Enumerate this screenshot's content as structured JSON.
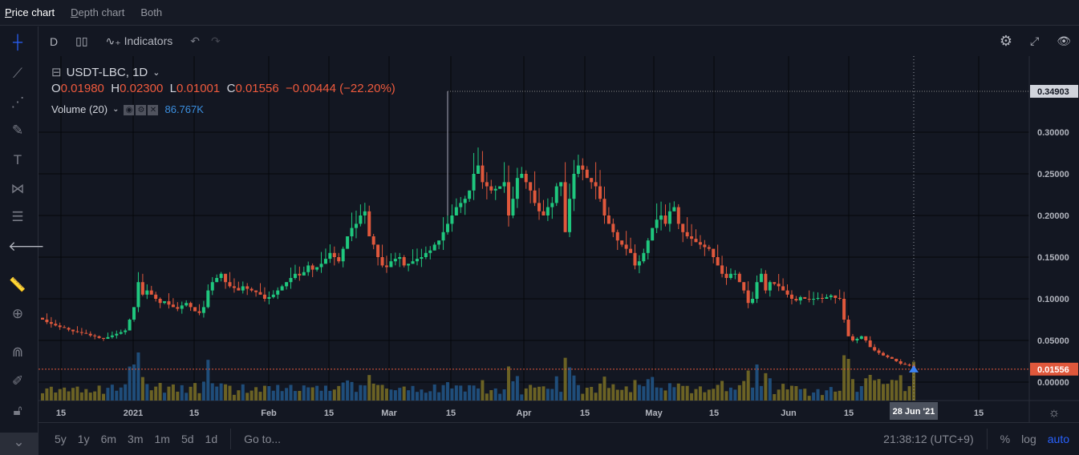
{
  "tabs": [
    {
      "label_u": "P",
      "label": "rice chart",
      "active": true
    },
    {
      "label_u": "D",
      "label": "epth chart",
      "active": false
    },
    {
      "label_u": "",
      "label": "Both",
      "active": false
    }
  ],
  "toolbar": {
    "interval": "D",
    "indicators": "Indicators"
  },
  "legend": {
    "symbol": "USDT-LBC, 1D",
    "o_label": "O",
    "o": "0.01980",
    "h_label": "H",
    "h": "0.02300",
    "l_label": "L",
    "l": "0.01001",
    "c_label": "C",
    "c": "0.01556",
    "change": "−0.00444 (−22.20%)",
    "volume_label": "Volume (20)",
    "volume_value": "86.767K"
  },
  "colors": {
    "up": "#26a69a",
    "bull": "#1fc77e",
    "bear": "#e0583c",
    "vol_up": "#1f4d7a",
    "vol_down": "#6b6224",
    "accent": "#2962ff",
    "last": "#e0583c"
  },
  "price_axis": {
    "labels": [
      "0.30000",
      "0.25000",
      "0.20000",
      "0.15000",
      "0.10000",
      "0.05000",
      "0.00000"
    ],
    "high_label": "0.34903",
    "last_label": "0.01556"
  },
  "time_axis": {
    "labels": [
      "15",
      "2021",
      "15",
      "Feb",
      "15",
      "Mar",
      "15",
      "Apr",
      "15",
      "May",
      "15",
      "Jun",
      "15",
      "15"
    ],
    "crosshair_label": "28 Jun '21"
  },
  "bottom": {
    "ranges": [
      "5y",
      "1y",
      "6m",
      "3m",
      "1m",
      "5d",
      "1d"
    ],
    "goto": "Go to...",
    "time": "21:38:12 (UTC+9)",
    "pct": "%",
    "log": "log",
    "auto": "auto"
  },
  "chart_data": {
    "type": "candlestick",
    "start": "2020-12-10",
    "end": "2021-06-28",
    "ylim": [
      0,
      0.35
    ],
    "spike_high": 0.34903,
    "closes": [
      0.075,
      0.072,
      0.07,
      0.068,
      0.066,
      0.065,
      0.063,
      0.061,
      0.06,
      0.059,
      0.058,
      0.056,
      0.055,
      0.053,
      0.052,
      0.054,
      0.056,
      0.058,
      0.06,
      0.062,
      0.075,
      0.09,
      0.12,
      0.105,
      0.11,
      0.105,
      0.1,
      0.095,
      0.097,
      0.093,
      0.09,
      0.088,
      0.092,
      0.095,
      0.09,
      0.085,
      0.083,
      0.09,
      0.11,
      0.12,
      0.125,
      0.13,
      0.12,
      0.115,
      0.113,
      0.11,
      0.115,
      0.112,
      0.11,
      0.108,
      0.105,
      0.1,
      0.102,
      0.105,
      0.11,
      0.115,
      0.12,
      0.125,
      0.13,
      0.128,
      0.132,
      0.14,
      0.135,
      0.138,
      0.142,
      0.148,
      0.155,
      0.15,
      0.145,
      0.16,
      0.175,
      0.185,
      0.19,
      0.2,
      0.205,
      0.175,
      0.165,
      0.15,
      0.14,
      0.138,
      0.145,
      0.148,
      0.15,
      0.14,
      0.142,
      0.145,
      0.148,
      0.15,
      0.155,
      0.158,
      0.165,
      0.17,
      0.18,
      0.19,
      0.2,
      0.21,
      0.215,
      0.22,
      0.23,
      0.25,
      0.26,
      0.24,
      0.235,
      0.23,
      0.232,
      0.235,
      0.24,
      0.2,
      0.22,
      0.245,
      0.25,
      0.24,
      0.23,
      0.215,
      0.205,
      0.2,
      0.21,
      0.215,
      0.235,
      0.24,
      0.18,
      0.22,
      0.25,
      0.26,
      0.255,
      0.245,
      0.24,
      0.235,
      0.22,
      0.2,
      0.19,
      0.18,
      0.17,
      0.165,
      0.16,
      0.155,
      0.14,
      0.145,
      0.155,
      0.17,
      0.185,
      0.195,
      0.2,
      0.19,
      0.205,
      0.21,
      0.19,
      0.18,
      0.175,
      0.172,
      0.168,
      0.165,
      0.162,
      0.16,
      0.15,
      0.14,
      0.13,
      0.125,
      0.13,
      0.13,
      0.12,
      0.11,
      0.095,
      0.1,
      0.12,
      0.13,
      0.11,
      0.12,
      0.118,
      0.115,
      0.11,
      0.105,
      0.1,
      0.098,
      0.102,
      0.1,
      0.099,
      0.1,
      0.101,
      0.1,
      0.102,
      0.104,
      0.101,
      0.1,
      0.075,
      0.055,
      0.05,
      0.052,
      0.055,
      0.05,
      0.042,
      0.038,
      0.035,
      0.032,
      0.03,
      0.028,
      0.025,
      0.022,
      0.021,
      0.0198,
      0.01556
    ]
  }
}
